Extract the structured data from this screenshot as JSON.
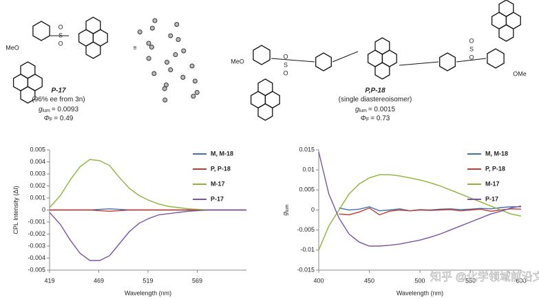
{
  "compounds": [
    {
      "name": "P-17",
      "note": "(96% ee from 3n)",
      "glum": {
        "symbol": "g",
        "sub": "lum",
        "value": "= 0.0093"
      },
      "phi": {
        "symbol": "Φ",
        "sub": "F",
        "value": "= 0.49"
      },
      "labels": [
        "MeO",
        "S",
        "O",
        "O"
      ]
    },
    {
      "name": "P,P-18",
      "note": "(single diastereoisomer)",
      "glum": {
        "symbol": "g",
        "sub": "lum",
        "value": "= 0.0015"
      },
      "phi": {
        "symbol": "Φ",
        "sub": "F",
        "value": "= 0.73"
      },
      "labels": [
        "MeO",
        "S",
        "O",
        "O",
        "S",
        "O",
        "O",
        "OMe"
      ]
    }
  ],
  "watermark": "知乎 @化学领域前沿文献",
  "chart_data": [
    {
      "type": "line",
      "xlabel": "Wavelength (nm)",
      "ylabel": "CPL Intensity (ΔI)",
      "legend": "upper right",
      "x": [
        419,
        430,
        440,
        450,
        460,
        470,
        480,
        490,
        500,
        510,
        520,
        530,
        540,
        550,
        560,
        570,
        580,
        600,
        619
      ],
      "xlim": [
        419,
        619
      ],
      "xticks": [
        419,
        469,
        519,
        569
      ],
      "ylim": [
        -0.005,
        0.005
      ],
      "yticks": [
        0.005,
        0.004,
        0.003,
        0.002,
        0.001,
        0,
        -0.001,
        -0.002,
        -0.003,
        -0.004,
        -0.005
      ],
      "series": [
        {
          "name": "M, M-18",
          "color": "#3d6fb6",
          "values": [
            0,
            0,
            0,
            0,
            0,
            5e-05,
            0.0001,
            5e-05,
            0,
            0,
            0,
            0,
            0,
            0,
            0,
            0,
            0,
            0,
            0
          ]
        },
        {
          "name": "P, P-18",
          "color": "#c0392b",
          "values": [
            0,
            0,
            0,
            0,
            0,
            -5e-05,
            -0.0001,
            -5e-05,
            0,
            0,
            0,
            0,
            0,
            0,
            0,
            0,
            0,
            0,
            0
          ]
        },
        {
          "name": "M-17",
          "color": "#8db33a",
          "values": [
            0.0002,
            0.0012,
            0.0025,
            0.0036,
            0.0042,
            0.0041,
            0.0037,
            0.0027,
            0.0018,
            0.0012,
            0.0008,
            0.0005,
            0.0003,
            0.0002,
            0.0001,
            5e-05,
            0,
            0,
            0
          ]
        },
        {
          "name": "P-17",
          "color": "#7b52a8",
          "values": [
            -0.0002,
            -0.0012,
            -0.0025,
            -0.0036,
            -0.0042,
            -0.0042,
            -0.0038,
            -0.0028,
            -0.0018,
            -0.0011,
            -0.0007,
            -0.0004,
            -0.0003,
            -0.0002,
            -0.0001,
            -5e-05,
            0,
            0,
            0
          ]
        }
      ]
    },
    {
      "type": "line",
      "xlabel": "Wavelength (nm)",
      "ylabel": "g",
      "ylabel_sub": "lum",
      "legend": "upper right",
      "x": [
        400,
        410,
        420,
        430,
        440,
        450,
        460,
        470,
        480,
        490,
        500,
        510,
        520,
        530,
        540,
        550,
        560,
        570,
        580,
        590,
        600
      ],
      "xlim": [
        400,
        600
      ],
      "xticks": [
        400,
        450,
        500,
        550,
        600
      ],
      "ylim": [
        -0.015,
        0.015
      ],
      "yticks": [
        0.015,
        0.01,
        0.005,
        0,
        -0.005,
        -0.01,
        -0.015
      ],
      "series": [
        {
          "name": "M, M-18",
          "color": "#3d6fb6",
          "values": [
            null,
            null,
            0.0005,
            0,
            0.0002,
            0.0008,
            -0.0002,
            0,
            0.0003,
            -0.0002,
            0.0001,
            0,
            0.0002,
            0.0003,
            0.0001,
            0.0002,
            0.0004,
            0.0003,
            0.0006,
            0.0008,
            0.0008
          ]
        },
        {
          "name": "P, P-18",
          "color": "#c0392b",
          "values": [
            null,
            null,
            -0.001,
            -0.0012,
            -0.0005,
            0.0005,
            -0.0012,
            -0.0003,
            0,
            -0.0002,
            0,
            -0.0001,
            0,
            0.0001,
            -0.0002,
            0,
            0.0002,
            -0.0003,
            0,
            0.0003,
            0.0002
          ]
        },
        {
          "name": "M-17",
          "color": "#8db33a",
          "values": [
            -0.01,
            -0.004,
            0,
            0.004,
            0.0065,
            0.008,
            0.0088,
            0.0088,
            0.0085,
            0.008,
            0.0075,
            0.0068,
            0.006,
            0.005,
            0.004,
            0.003,
            0.002,
            0.001,
            0,
            -0.001,
            -0.0015
          ]
        },
        {
          "name": "P-17",
          "color": "#7b52a8",
          "values": [
            0.0145,
            0.004,
            -0.002,
            -0.006,
            -0.008,
            -0.009,
            -0.009,
            -0.0088,
            -0.0085,
            -0.008,
            -0.0075,
            -0.0068,
            -0.006,
            -0.005,
            -0.004,
            -0.003,
            -0.002,
            -0.001,
            -0.0003,
            0.0005,
            0.001
          ]
        }
      ]
    }
  ]
}
